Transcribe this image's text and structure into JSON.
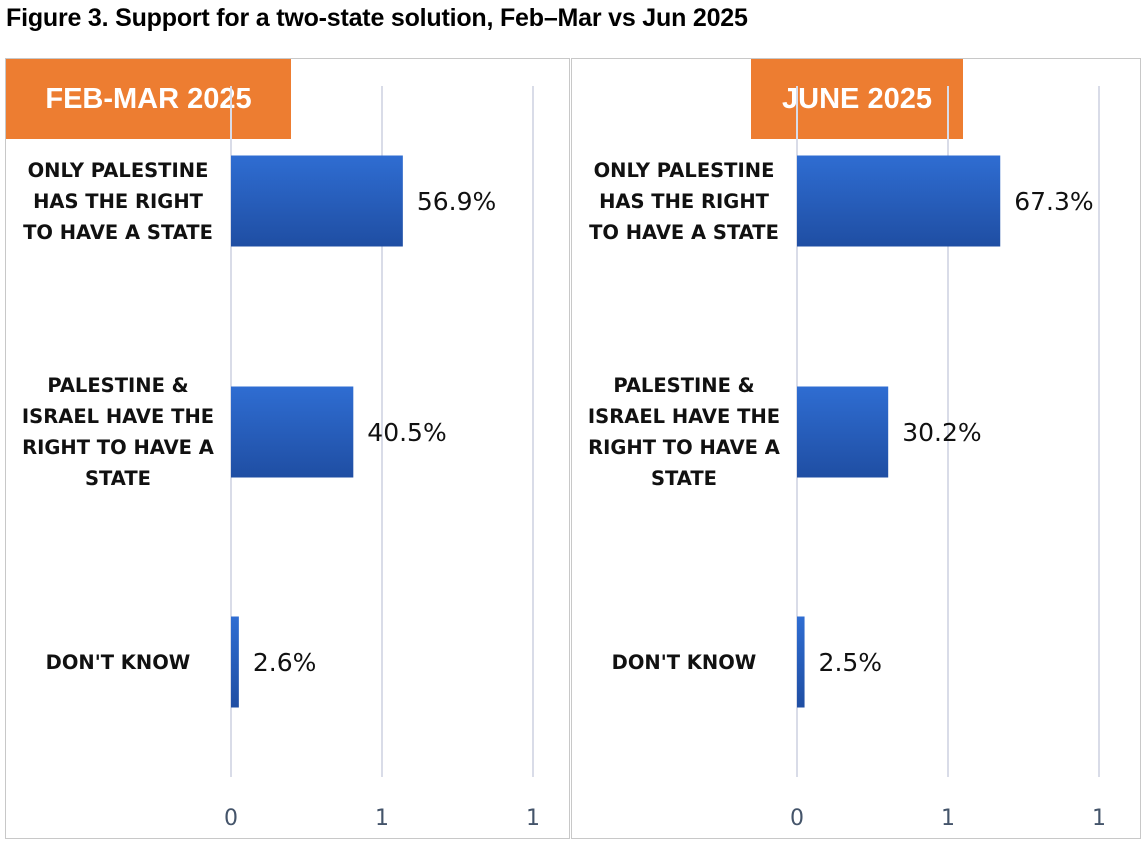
{
  "figure_title": "Figure 3. Support for a two-state solution, Feb–Mar vs Jun 2025",
  "colors": {
    "bar": "#2f6dd2",
    "bar_dark": "#1f4ea3",
    "header": "#ed7d31",
    "grid": "#d9dce8"
  },
  "chart_data": [
    {
      "type": "bar",
      "orientation": "horizontal",
      "title": "FEB-MAR 2025",
      "categories": [
        "ONLY PALESTINE HAS THE RIGHT TO HAVE A STATE",
        "PALESTINE & ISRAEL HAVE THE RIGHT TO HAVE A STATE",
        "DON'T KNOW"
      ],
      "category_lines": [
        [
          "ONLY PALESTINE",
          "HAS THE RIGHT",
          "TO HAVE A STATE"
        ],
        [
          "PALESTINE &",
          "ISRAEL HAVE THE",
          "RIGHT TO HAVE A",
          "STATE"
        ],
        [
          "DON'T KNOW"
        ]
      ],
      "values": [
        0.569,
        0.405,
        0.026
      ],
      "value_labels": [
        "56.9%",
        "40.5%",
        "2.6%"
      ],
      "xlim": [
        0,
        1
      ],
      "tick_labels": [
        "0",
        "1",
        "1"
      ],
      "grid": true
    },
    {
      "type": "bar",
      "orientation": "horizontal",
      "title": "JUNE 2025",
      "categories": [
        "ONLY PALESTINE HAS THE RIGHT TO HAVE A STATE",
        "PALESTINE & ISRAEL HAVE THE RIGHT TO HAVE A STATE",
        "DON'T KNOW"
      ],
      "category_lines": [
        [
          "ONLY PALESTINE",
          "HAS THE RIGHT",
          "TO HAVE A STATE"
        ],
        [
          "PALESTINE &",
          "ISRAEL HAVE THE",
          "RIGHT TO HAVE A",
          "STATE"
        ],
        [
          "DON'T KNOW"
        ]
      ],
      "values": [
        0.673,
        0.302,
        0.025
      ],
      "value_labels": [
        "67.3%",
        "30.2%",
        "2.5%"
      ],
      "xlim": [
        0,
        1
      ],
      "tick_labels": [
        "0",
        "1",
        "1"
      ],
      "grid": true
    }
  ]
}
